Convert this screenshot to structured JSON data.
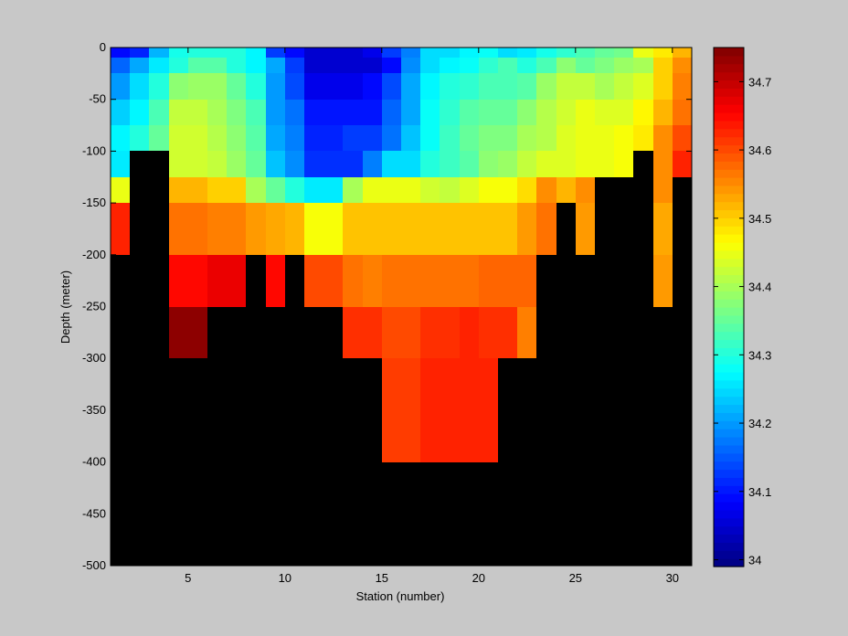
{
  "chart_data": {
    "type": "heatmap",
    "xlabel": "Station (number)",
    "ylabel": "Depth (meter)",
    "xlim": [
      1,
      31
    ],
    "ylim": [
      -500,
      0
    ],
    "x_ticks": [
      5,
      10,
      15,
      20,
      25,
      30
    ],
    "y_ticks": [
      0,
      -50,
      -100,
      -150,
      -200,
      -250,
      -300,
      -350,
      -400,
      -450,
      -500
    ],
    "depth_bins": [
      [
        0,
        -10
      ],
      [
        -10,
        -25
      ],
      [
        -25,
        -50
      ],
      [
        -50,
        -75
      ],
      [
        -75,
        -100
      ],
      [
        -100,
        -125
      ],
      [
        -125,
        -150
      ],
      [
        -150,
        -200
      ],
      [
        -200,
        -250
      ],
      [
        -250,
        -300
      ],
      [
        -300,
        -400
      ],
      [
        -400,
        -500
      ]
    ],
    "stations": [
      1,
      2,
      3,
      4,
      5,
      6,
      7,
      8,
      9,
      10,
      11,
      12,
      13,
      14,
      15,
      16,
      17,
      18,
      19,
      20,
      21,
      22,
      23,
      24,
      25,
      26,
      27,
      28,
      29,
      30
    ],
    "colorbar": {
      "min": 33.99,
      "max": 34.75,
      "ticks": [
        34,
        34.1,
        34.2,
        34.3,
        34.4,
        34.5,
        34.6,
        34.7
      ],
      "colormap": "jet"
    },
    "no_data_color": "#000000",
    "values": [
      [
        34.09,
        34.11,
        34.22,
        34.29,
        34.3,
        34.3,
        34.3,
        34.27,
        34.13,
        34.09,
        34.05,
        34.05,
        34.05,
        34.07,
        34.13,
        34.18,
        34.25,
        34.25,
        34.27,
        34.28,
        34.25,
        34.26,
        34.29,
        34.31,
        34.33,
        34.35,
        34.36,
        34.45,
        34.48,
        34.52
      ],
      [
        34.16,
        34.21,
        34.26,
        34.3,
        34.34,
        34.34,
        34.3,
        34.27,
        34.21,
        34.13,
        34.05,
        34.05,
        34.05,
        34.05,
        34.09,
        34.19,
        34.25,
        34.27,
        34.28,
        34.31,
        34.33,
        34.3,
        34.33,
        34.38,
        34.35,
        34.37,
        34.39,
        34.4,
        34.5,
        34.55
      ],
      [
        34.2,
        34.25,
        34.3,
        34.38,
        34.39,
        34.39,
        34.35,
        34.3,
        34.2,
        34.14,
        34.07,
        34.07,
        34.07,
        34.09,
        34.14,
        34.21,
        34.27,
        34.3,
        34.31,
        34.33,
        34.33,
        34.34,
        34.39,
        34.42,
        34.42,
        34.4,
        34.42,
        34.44,
        34.5,
        34.56
      ],
      [
        34.24,
        34.27,
        34.33,
        34.42,
        34.42,
        34.4,
        34.37,
        34.33,
        34.2,
        34.17,
        34.1,
        34.1,
        34.1,
        34.1,
        34.16,
        34.21,
        34.28,
        34.31,
        34.34,
        34.35,
        34.35,
        34.38,
        34.41,
        34.43,
        34.45,
        34.44,
        34.44,
        34.47,
        34.52,
        34.57
      ],
      [
        34.27,
        34.3,
        34.35,
        34.43,
        34.43,
        34.41,
        34.38,
        34.34,
        34.21,
        34.18,
        34.11,
        34.11,
        34.13,
        34.13,
        34.17,
        34.23,
        34.28,
        34.32,
        34.35,
        34.37,
        34.37,
        34.4,
        34.41,
        34.44,
        34.45,
        34.45,
        34.46,
        34.48,
        34.55,
        34.6
      ],
      [
        34.26,
        null,
        null,
        34.43,
        34.43,
        34.42,
        34.39,
        34.35,
        34.23,
        34.19,
        34.12,
        34.12,
        34.12,
        34.18,
        34.25,
        34.25,
        34.3,
        34.32,
        34.34,
        34.38,
        34.39,
        34.42,
        34.44,
        34.44,
        34.45,
        34.45,
        34.46,
        null,
        34.55,
        34.63
      ],
      [
        34.45,
        null,
        null,
        34.52,
        34.52,
        34.5,
        34.5,
        34.4,
        34.35,
        34.3,
        34.26,
        34.26,
        34.4,
        34.45,
        34.45,
        34.45,
        34.43,
        34.42,
        34.44,
        34.46,
        34.46,
        34.49,
        34.55,
        34.52,
        34.55,
        null,
        null,
        null,
        34.55,
        null
      ],
      [
        34.63,
        null,
        null,
        34.57,
        34.57,
        34.56,
        34.56,
        34.54,
        34.53,
        34.52,
        34.46,
        34.46,
        34.51,
        34.51,
        34.51,
        34.51,
        34.51,
        34.51,
        34.51,
        34.51,
        34.51,
        34.54,
        34.57,
        null,
        34.54,
        null,
        null,
        null,
        34.53,
        null
      ],
      [
        null,
        null,
        null,
        34.65,
        34.65,
        34.67,
        34.67,
        null,
        34.65,
        null,
        34.6,
        34.6,
        34.57,
        34.56,
        34.57,
        34.57,
        34.57,
        34.57,
        34.57,
        34.58,
        34.58,
        34.58,
        null,
        null,
        null,
        null,
        null,
        null,
        34.54,
        null
      ],
      [
        null,
        null,
        null,
        34.74,
        34.74,
        null,
        null,
        null,
        null,
        null,
        null,
        null,
        34.62,
        34.62,
        34.6,
        34.6,
        34.62,
        34.62,
        34.63,
        34.62,
        34.62,
        34.56,
        null,
        null,
        null,
        null,
        null,
        null,
        null,
        null
      ],
      [
        null,
        null,
        null,
        null,
        null,
        null,
        null,
        null,
        null,
        null,
        null,
        null,
        null,
        null,
        34.61,
        34.61,
        34.63,
        34.63,
        34.63,
        34.63,
        null,
        null,
        null,
        null,
        null,
        null,
        null,
        null,
        null,
        null
      ],
      [
        null,
        null,
        null,
        null,
        null,
        null,
        null,
        null,
        null,
        null,
        null,
        null,
        null,
        null,
        null,
        null,
        null,
        null,
        null,
        null,
        null,
        null,
        null,
        null,
        null,
        null,
        null,
        null,
        null,
        null
      ]
    ]
  }
}
